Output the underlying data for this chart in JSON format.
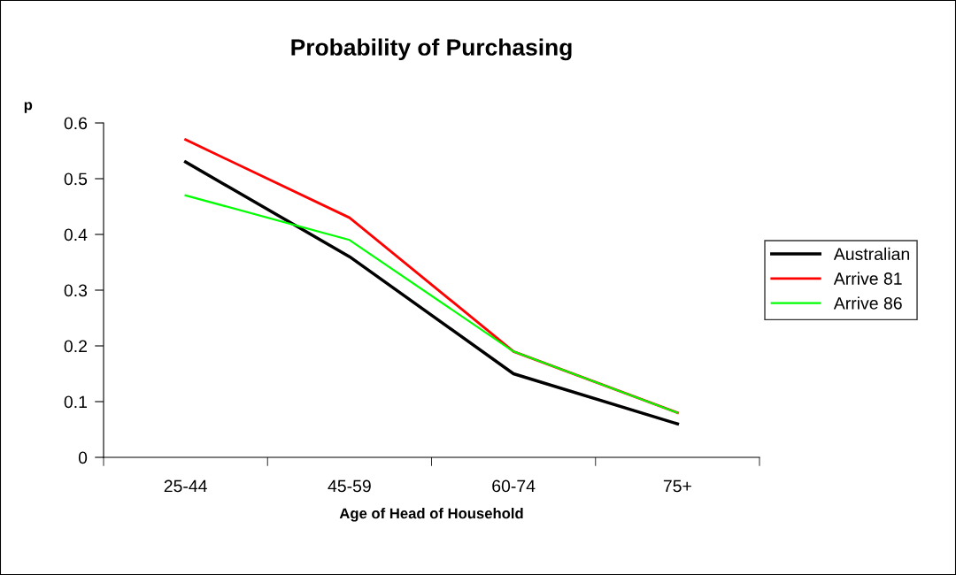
{
  "chart_data": {
    "type": "line",
    "title": "Probability of Purchasing",
    "xlabel": "Age of Head of Household",
    "ylabel": "p",
    "categories": [
      "25-44",
      "45-59",
      "60-74",
      "75+"
    ],
    "series": [
      {
        "name": "Australian",
        "color": "#000000",
        "values": [
          0.53,
          0.36,
          0.15,
          0.06
        ]
      },
      {
        "name": "Arrive 81",
        "color": "#ff0000",
        "values": [
          0.57,
          0.43,
          0.19,
          0.08
        ]
      },
      {
        "name": "Arrive 86",
        "color": "#00ff00",
        "values": [
          0.47,
          0.39,
          0.19,
          0.08
        ]
      }
    ],
    "ylim": [
      0,
      0.6
    ],
    "yticks": [
      0,
      0.1,
      0.2,
      0.3,
      0.4,
      0.5,
      0.6
    ],
    "grid": false,
    "legend": "right",
    "marker": "none",
    "line_style": "solid"
  }
}
